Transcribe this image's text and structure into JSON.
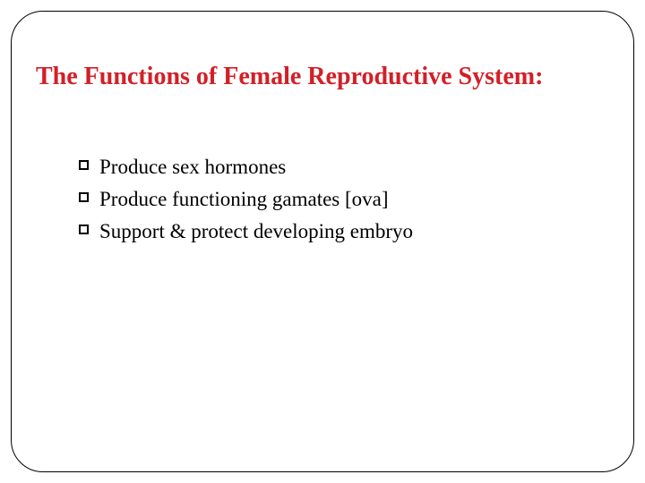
{
  "slide": {
    "title": "The Functions of Female Reproductive System:",
    "title_color": "#d22027",
    "title_fontsize": 28,
    "title_fontweight": "bold",
    "title_fontfamily": "Times New Roman, Georgia, serif",
    "bullets": [
      "Produce sex hormones",
      "Produce functioning gamates [ova]",
      "Support & protect developing embryo"
    ],
    "bullet_fontsize": 23,
    "bullet_color": "#000000",
    "bullet_fontfamily": "Georgia, Times New Roman, serif",
    "bullet_marker_border_color": "#000000",
    "bullet_marker_fill": "#ffffff",
    "bullet_marker_size": 11,
    "frame_border_color": "#000000",
    "frame_border_radius": 36,
    "background_color": "#ffffff"
  }
}
